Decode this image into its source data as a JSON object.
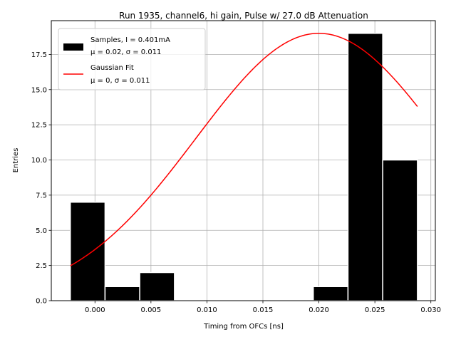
{
  "chart_data": {
    "type": "bar",
    "title": "Run 1935, channel6, hi gain, Pulse w/ 27.0 dB Attenuation",
    "xlabel": "Timing from OFCs [ns]",
    "ylabel": "Entries",
    "xlim": [
      -0.0039,
      0.0304
    ],
    "ylim": [
      0.0,
      19.9
    ],
    "xticks": [
      0.0,
      0.005,
      0.01,
      0.015,
      0.02,
      0.025,
      0.03
    ],
    "xtick_labels": [
      "0.000",
      "0.005",
      "0.010",
      "0.015",
      "0.020",
      "0.025",
      "0.030"
    ],
    "yticks": [
      0.0,
      2.5,
      5.0,
      7.5,
      10.0,
      12.5,
      15.0,
      17.5
    ],
    "ytick_labels": [
      "0.0",
      "2.5",
      "5.0",
      "7.5",
      "10.0",
      "12.5",
      "15.0",
      "17.5"
    ],
    "grid": true,
    "histogram": {
      "bins": [
        {
          "x0": -0.0022,
          "x1": 0.0009,
          "value": 7
        },
        {
          "x0": 0.0009,
          "x1": 0.004,
          "value": 1
        },
        {
          "x0": 0.004,
          "x1": 0.0071,
          "value": 2
        },
        {
          "x0": 0.0071,
          "x1": 0.0102,
          "value": 0
        },
        {
          "x0": 0.0102,
          "x1": 0.0133,
          "value": 0
        },
        {
          "x0": 0.0133,
          "x1": 0.0164,
          "value": 0
        },
        {
          "x0": 0.0164,
          "x1": 0.0195,
          "value": 0
        },
        {
          "x0": 0.0195,
          "x1": 0.0226,
          "value": 1
        },
        {
          "x0": 0.0226,
          "x1": 0.0257,
          "value": 19
        },
        {
          "x0": 0.0257,
          "x1": 0.0288,
          "value": 10
        }
      ],
      "color": "#000000"
    },
    "fit": {
      "type": "gaussian",
      "mu": 0.02,
      "sigma": 0.011,
      "amplitude": 19.0,
      "x_range": [
        -0.0022,
        0.0288
      ],
      "color": "#ff0000"
    },
    "legend": {
      "placement": "top-left",
      "entries": [
        {
          "line1": "Samples, I = 0.401mA",
          "line2": "μ = 0.02, σ = 0.011",
          "kind": "patch",
          "color": "#000000"
        },
        {
          "line1": "Gaussian Fit",
          "line2": "μ = 0, σ = 0.011",
          "kind": "line",
          "color": "#ff0000"
        }
      ]
    }
  }
}
